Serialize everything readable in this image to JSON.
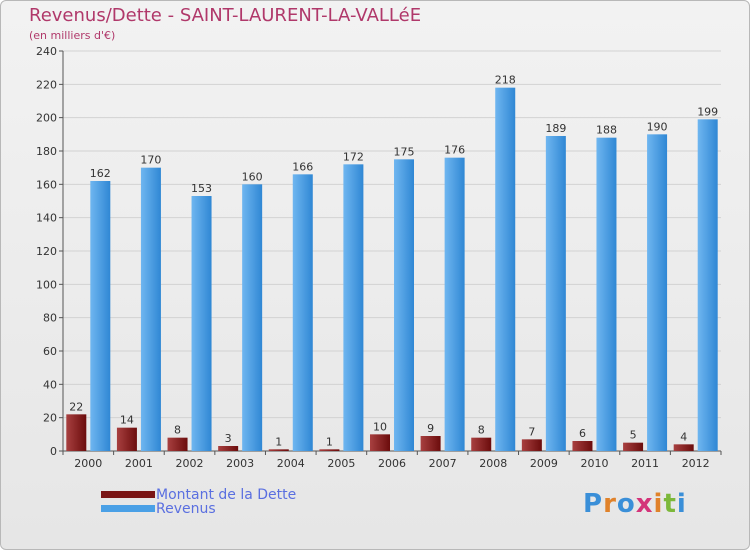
{
  "title": "Revenus/Dette - SAINT-LAURENT-LA-VALLéE",
  "subtitle": "(en milliers d'€)",
  "logo_text": "Proxiti",
  "colors": {
    "dette": "#6b0c0c",
    "dette_light": "#a84040",
    "revenus": "#2f87d4",
    "revenus_light": "#6fb6f0",
    "title": "#b0386a",
    "legend_text": "#5a6fe0"
  },
  "legend": [
    {
      "label": "Montant de la Dette",
      "color": "#7a1515"
    },
    {
      "label": "Revenus",
      "color": "#4aa0e6"
    }
  ],
  "chart_data": {
    "type": "bar",
    "title": "Revenus/Dette - SAINT-LAURENT-LA-VALLéE",
    "subtitle": "(en milliers d'€)",
    "categories": [
      "2000",
      "2001",
      "2002",
      "2003",
      "2004",
      "2005",
      "2006",
      "2007",
      "2008",
      "2009",
      "2010",
      "2011",
      "2012"
    ],
    "series": [
      {
        "name": "Montant de la Dette",
        "values": [
          22,
          14,
          8,
          3,
          1,
          1,
          10,
          9,
          8,
          7,
          6,
          5,
          4
        ]
      },
      {
        "name": "Revenus",
        "values": [
          162,
          170,
          153,
          160,
          166,
          172,
          175,
          176,
          218,
          189,
          188,
          190,
          199
        ]
      }
    ],
    "ylim": [
      0,
      240
    ],
    "yticks": [
      0,
      20,
      40,
      60,
      80,
      100,
      120,
      140,
      160,
      180,
      200,
      220,
      240
    ],
    "grid": true,
    "legend_position": "bottom-left"
  }
}
